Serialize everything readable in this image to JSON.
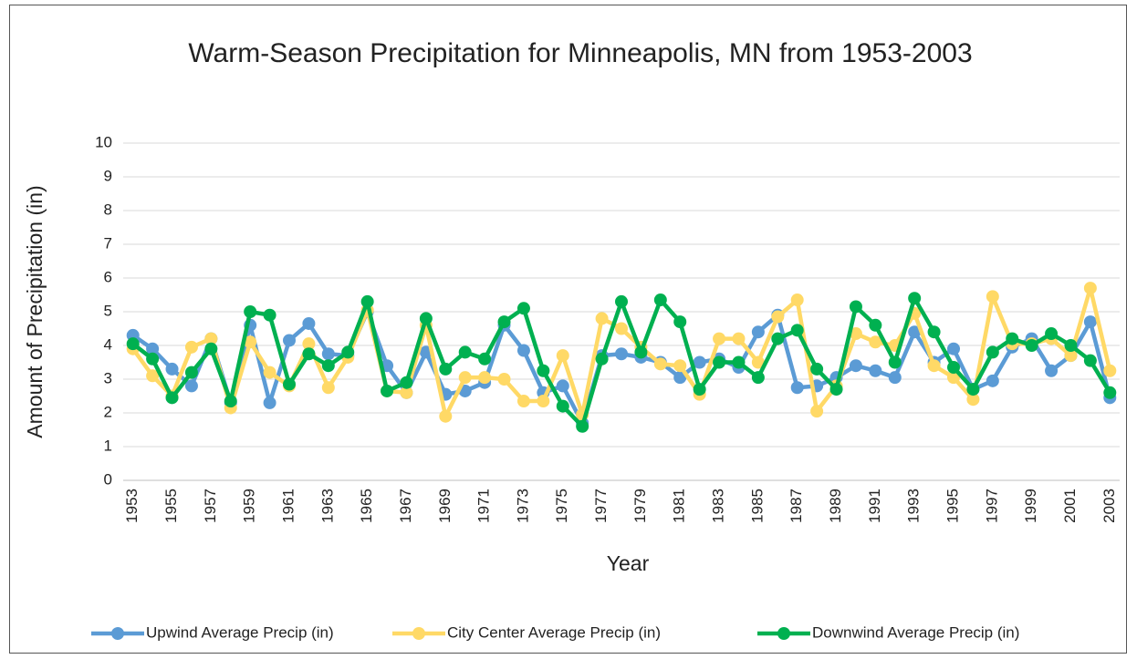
{
  "chart_data": {
    "type": "line",
    "title": "Warm-Season Precipitation for Minneapolis, MN from 1953-2003",
    "xlabel": "Year",
    "ylabel": "Amount of Precipitation (in)",
    "categories": [
      "1953",
      null,
      "1955",
      null,
      "1957",
      null,
      "1959",
      null,
      "1961",
      null,
      "1963",
      null,
      "1965",
      null,
      "1967",
      null,
      "1969",
      null,
      "1971",
      null,
      "1973",
      null,
      "1975",
      null,
      "1977",
      null,
      "1979",
      null,
      "1981",
      null,
      "1983",
      null,
      "1985",
      null,
      "1987",
      null,
      "1989",
      null,
      "1991",
      null,
      "1993",
      null,
      "1995",
      null,
      "1997",
      null,
      "1999",
      null,
      "2001",
      null,
      "2003"
    ],
    "series": [
      {
        "name": "Upwind Average Precip (in)",
        "color": "#5b9bd5",
        "values": [
          4.3,
          3.9,
          3.3,
          2.8,
          4.2,
          2.3,
          4.6,
          2.3,
          4.15,
          4.65,
          3.75,
          3.7,
          5.0,
          3.4,
          2.6,
          3.8,
          2.55,
          2.65,
          2.9,
          4.6,
          3.85,
          2.6,
          2.8,
          1.7,
          3.7,
          3.75,
          3.65,
          3.5,
          3.05,
          3.5,
          3.6,
          3.35,
          4.4,
          4.9,
          2.75,
          2.8,
          3.05,
          3.4,
          3.25,
          3.05,
          4.4,
          3.5,
          3.9,
          2.7,
          2.95,
          3.95,
          4.2,
          3.25,
          3.7,
          4.7,
          2.45
        ]
      },
      {
        "name": "City Center Average Precip (in)",
        "color": "#ffd966",
        "values": [
          3.9,
          3.1,
          2.5,
          3.95,
          4.2,
          2.15,
          4.1,
          3.2,
          2.8,
          4.05,
          2.75,
          3.65,
          5.05,
          2.65,
          2.6,
          4.6,
          1.9,
          3.05,
          3.05,
          3.0,
          2.35,
          2.35,
          3.7,
          1.95,
          4.8,
          4.5,
          3.95,
          3.45,
          3.4,
          2.55,
          4.2,
          4.2,
          3.5,
          4.85,
          5.35,
          2.05,
          2.8,
          4.35,
          4.1,
          4.0,
          4.95,
          3.4,
          3.05,
          2.4,
          5.45,
          4.05,
          4.05,
          4.2,
          3.7,
          5.7,
          3.25
        ]
      },
      {
        "name": "Downwind Average Precip (in)",
        "color": "#00b050",
        "values": [
          4.05,
          3.6,
          2.45,
          3.2,
          3.9,
          2.35,
          5.0,
          4.9,
          2.85,
          3.75,
          3.4,
          3.8,
          5.3,
          2.65,
          2.9,
          4.8,
          3.3,
          3.8,
          3.6,
          4.7,
          5.1,
          3.25,
          2.2,
          1.6,
          3.6,
          5.3,
          3.8,
          5.35,
          4.7,
          2.7,
          3.5,
          3.5,
          3.05,
          4.2,
          4.45,
          3.3,
          2.7,
          5.15,
          4.6,
          3.5,
          5.4,
          4.4,
          3.35,
          2.7,
          3.8,
          4.2,
          4.0,
          4.35,
          4.0,
          3.55,
          2.6
        ]
      }
    ],
    "ylim": [
      0,
      10
    ],
    "yticks": [
      0,
      1,
      2,
      3,
      4,
      5,
      6,
      7,
      8,
      9,
      10
    ],
    "grid": true,
    "legend": "bottom"
  }
}
